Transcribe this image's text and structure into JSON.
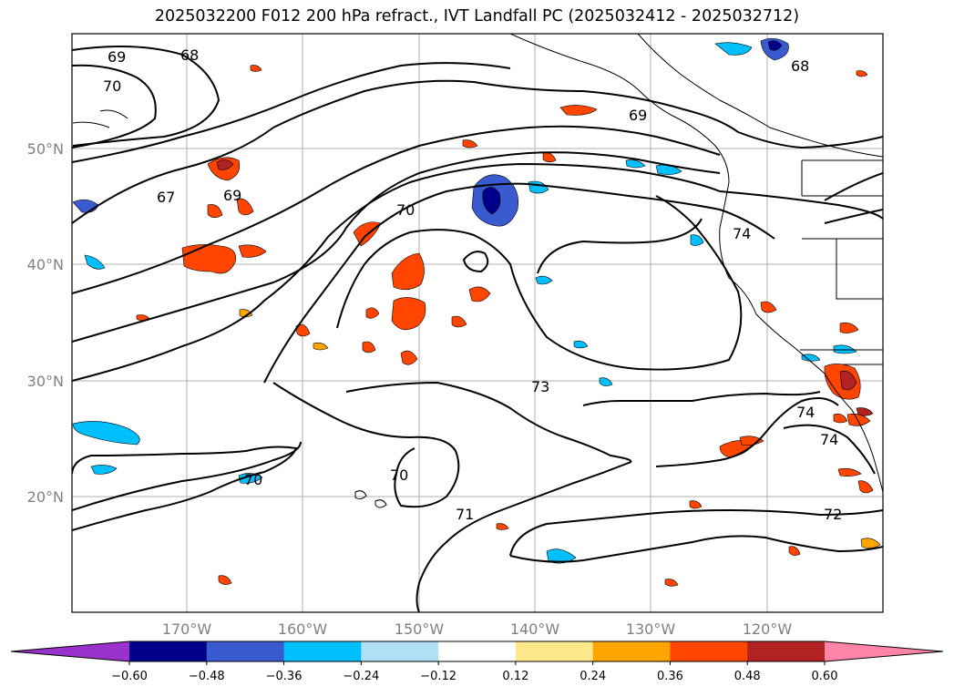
{
  "title": "2025032200 F012 200 hPa refract., IVT Landfall PC (2025032412 - 2025032712)",
  "latitude_labels": [
    "50°N",
    "40°N",
    "30°N",
    "20°N"
  ],
  "longitude_labels": [
    "170°W",
    "160°W",
    "150°W",
    "140°W",
    "130°W",
    "120°W"
  ],
  "contour_labels": [
    "69",
    "68",
    "70",
    "67",
    "69",
    "68",
    "69",
    "70",
    "74",
    "73",
    "74",
    "74",
    "70",
    "70",
    "71",
    "72"
  ],
  "colorbar": {
    "ticks": [
      "−0.60",
      "−0.48",
      "−0.36",
      "−0.24",
      "−0.12",
      "0.12",
      "0.24",
      "0.36",
      "0.48",
      "0.60"
    ],
    "colors": [
      "#9932cc",
      "#00008b",
      "#3a5bd0",
      "#00bfff",
      "#b0e0f6",
      "#ffffff",
      "#fee88c",
      "#ffa500",
      "#ff4500",
      "#b22222",
      "#ff85a8"
    ]
  }
}
